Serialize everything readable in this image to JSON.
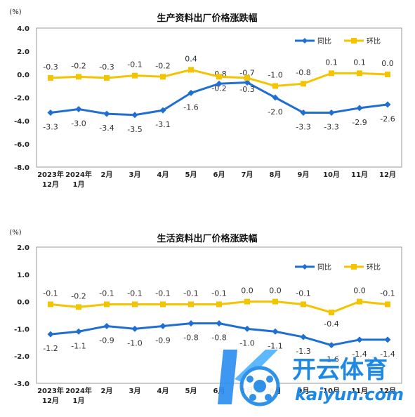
{
  "chart_data": [
    {
      "type": "line",
      "title": "生产资料出厂价格涨跌幅",
      "unit": "(%)",
      "categories": [
        [
          "2023年",
          "12月"
        ],
        [
          "2024年",
          "1月"
        ],
        [
          "2月"
        ],
        [
          "3月"
        ],
        [
          "4月"
        ],
        [
          "5月"
        ],
        [
          "6月"
        ],
        [
          "7月"
        ],
        [
          "8月"
        ],
        [
          "9月"
        ],
        [
          "10月"
        ],
        [
          "11月"
        ],
        [
          "12月"
        ]
      ],
      "ylim": [
        -8.0,
        4.0
      ],
      "yticks": [
        "4.0",
        "2.0",
        "0.0",
        "-2.0",
        "-4.0",
        "-6.0",
        "-8.0"
      ],
      "legend_position": "top-right",
      "series": [
        {
          "name": "同比",
          "color": "#1f6fd1",
          "marker": "diamond",
          "values": [
            -3.3,
            -3.0,
            -3.4,
            -3.5,
            -3.1,
            -1.6,
            -0.8,
            -0.7,
            -2.0,
            -3.3,
            -3.3,
            -2.9,
            -2.6
          ],
          "labels": [
            "-3.3",
            "-3.0",
            "-3.4",
            "-3.5",
            "-3.1",
            "-1.6",
            "-0.8",
            "-0.7",
            "-2.0",
            "-3.3",
            "-3.3",
            "-2.9",
            "-2.6"
          ]
        },
        {
          "name": "环比",
          "color": "#f5c400",
          "marker": "square",
          "values": [
            -0.3,
            -0.2,
            -0.3,
            -0.1,
            -0.2,
            0.4,
            -0.2,
            -0.3,
            -1.0,
            -0.8,
            0.1,
            0.1,
            0.0
          ],
          "labels": [
            "-0.3",
            "-0.2",
            "-0.3",
            "-0.1",
            "-0.2",
            "0.4",
            "-0.2",
            "-0.3",
            "-1.0",
            "-0.8",
            "0.1",
            "0.1",
            "0.0"
          ]
        }
      ]
    },
    {
      "type": "line",
      "title": "生活资料出厂价格涨跌幅",
      "unit": "(%)",
      "categories": [
        [
          "2023年",
          "12月"
        ],
        [
          "2024年",
          "1月"
        ],
        [
          "2月"
        ],
        [
          "3月"
        ],
        [
          "4月"
        ],
        [
          "5月"
        ],
        [
          "6月"
        ],
        [
          "7月"
        ],
        [
          "8月"
        ],
        [
          "9月"
        ],
        [
          "10月"
        ],
        [
          "11月"
        ],
        [
          "12月"
        ]
      ],
      "ylim": [
        -3.0,
        2.0
      ],
      "yticks": [
        "2.0",
        "1.0",
        "0.0",
        "-1.0",
        "-2.0",
        "-3.0"
      ],
      "legend_position": "top-right",
      "series": [
        {
          "name": "同比",
          "color": "#1f6fd1",
          "marker": "diamond",
          "values": [
            -1.2,
            -1.1,
            -0.9,
            -1.0,
            -0.9,
            -0.8,
            -0.8,
            -1.0,
            -1.1,
            -1.3,
            -1.6,
            -1.4,
            -1.4
          ],
          "labels": [
            "-1.2",
            "-1.1",
            "-0.9",
            "-1.0",
            "-0.9",
            "-0.8",
            "-0.8",
            "-1.0",
            "-1.1",
            "-1.3",
            "-1.6",
            "-1.4",
            "-1.4"
          ]
        },
        {
          "name": "环比",
          "color": "#f5c400",
          "marker": "square",
          "values": [
            -0.1,
            -0.2,
            -0.1,
            -0.1,
            -0.1,
            -0.1,
            -0.1,
            0.0,
            0.0,
            -0.1,
            -0.4,
            0.0,
            -0.1
          ],
          "labels": [
            "-0.1",
            "-0.2",
            "-0.1",
            "-0.1",
            "-0.1",
            "-0.1",
            "-0.1",
            "0.0",
            "0.0",
            "-0.1",
            "-0.4",
            "0.0",
            "-0.1"
          ]
        }
      ]
    }
  ],
  "watermark": {
    "brand_cn": "开云体育",
    "brand_en": "kaiyun.com",
    "brand_color": "#1e88e5"
  }
}
